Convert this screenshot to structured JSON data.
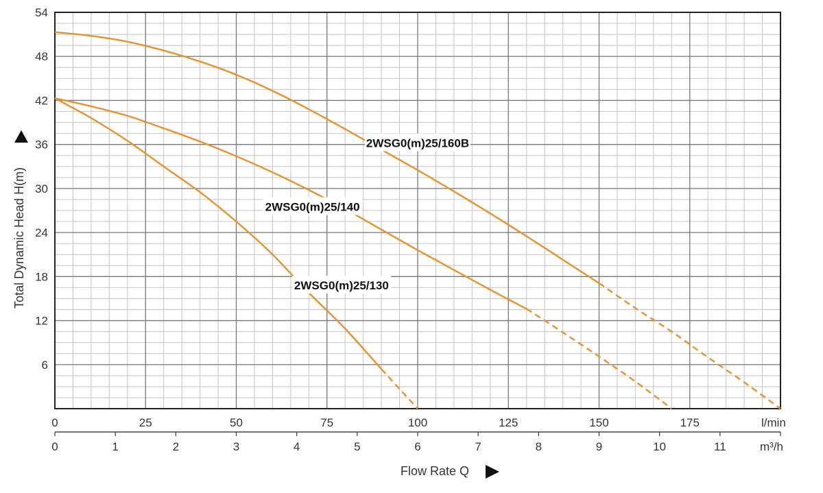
{
  "chart_data": {
    "type": "line",
    "title": "",
    "xlabel": "Flow Rate Q",
    "ylabel": "Total Dynamic Head H(m)",
    "xlim": [
      0,
      200
    ],
    "ylim": [
      0,
      54
    ],
    "x_ticks_lmin": [
      "0",
      "25",
      "50",
      "75",
      "100",
      "125",
      "150",
      "175"
    ],
    "x_unit_lmin": "l/min",
    "x_ticks_m3h": [
      "0",
      "1",
      "2",
      "3",
      "4",
      "5",
      "6",
      "7",
      "8",
      "9",
      "10",
      "11"
    ],
    "x_unit_m3h": "m³/h",
    "y_ticks": [
      "6",
      "12",
      "18",
      "24",
      "30",
      "36",
      "42",
      "48",
      "54"
    ],
    "grid": true,
    "line_color": "#E8922B",
    "series": [
      {
        "name": "2WSG0(m)25/160B",
        "x": [
          0,
          10,
          20,
          30,
          40,
          50,
          60,
          70,
          80,
          90,
          100,
          110,
          120,
          130,
          140,
          150
        ],
        "y": [
          51.3,
          50.8,
          50.0,
          48.8,
          47.3,
          45.5,
          43.3,
          40.8,
          38.1,
          35.3,
          32.5,
          29.6,
          26.6,
          23.5,
          20.3,
          17.1
        ],
        "dashed_x": [
          150,
          160,
          170,
          180,
          190,
          200
        ],
        "dashed_y": [
          17.1,
          13.7,
          10.5,
          7.0,
          3.6,
          0
        ]
      },
      {
        "name": "2WSG0(m)25/140",
        "x": [
          0,
          10,
          20,
          30,
          40,
          50,
          60,
          70,
          80,
          90,
          100,
          110,
          120,
          130
        ],
        "y": [
          42.3,
          41.2,
          39.9,
          38.2,
          36.4,
          34.4,
          32.2,
          29.8,
          27.2,
          24.4,
          21.6,
          18.9,
          16.2,
          13.6
        ],
        "dashed_x": [
          130,
          140,
          150,
          160,
          170,
          180,
          190,
          200
        ],
        "dashed_y": [
          13.6,
          10.4,
          7.1,
          3.7,
          0,
          null,
          null,
          null
        ]
      },
      {
        "name": "2WSG0(m)25/130",
        "x": [
          0,
          10,
          20,
          30,
          40,
          50,
          60,
          70,
          80,
          90
        ],
        "y": [
          42.3,
          39.6,
          36.5,
          33.0,
          29.5,
          25.5,
          21.0,
          15.8,
          10.9,
          5.4
        ],
        "dashed_x": [
          90,
          95,
          100,
          110,
          120,
          130,
          140,
          150
        ],
        "dashed_y": [
          5.4,
          2.7,
          0,
          null,
          null,
          null,
          null,
          null
        ]
      }
    ]
  }
}
